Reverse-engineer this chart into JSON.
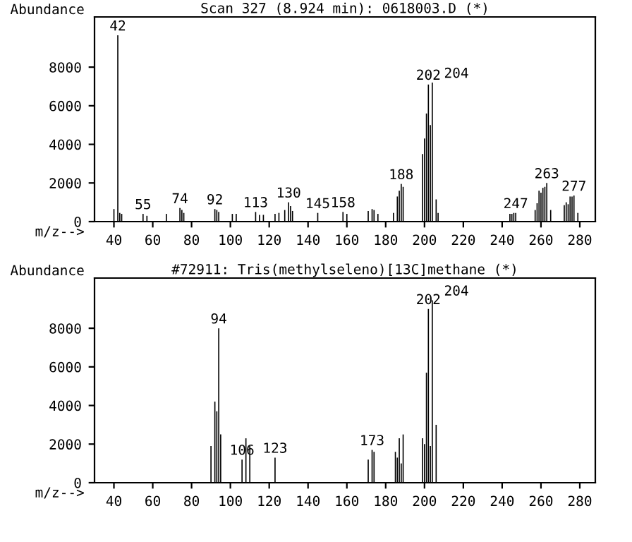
{
  "chart_data": [
    {
      "type": "bar",
      "title": "Scan 327 (8.924 min): 0618003.D (*)",
      "xlabel": "m/z-->",
      "ylabel": "Abundance",
      "x": [
        40,
        42,
        43,
        44,
        55,
        57,
        67,
        74,
        75,
        76,
        92,
        93,
        94,
        101,
        103,
        113,
        115,
        117,
        123,
        125,
        128,
        130,
        131,
        132,
        145,
        158,
        160,
        171,
        173,
        174,
        176,
        184,
        186,
        187,
        188,
        189,
        199,
        200,
        201,
        202,
        203,
        204,
        206,
        207,
        244,
        245,
        246,
        247,
        257,
        258,
        259,
        260,
        261,
        262,
        263,
        265,
        272,
        273,
        274,
        275,
        276,
        277,
        279
      ],
      "values": [
        650,
        9650,
        450,
        400,
        400,
        300,
        400,
        700,
        600,
        450,
        650,
        600,
        500,
        400,
        400,
        500,
        350,
        350,
        400,
        450,
        600,
        1000,
        800,
        550,
        450,
        500,
        400,
        550,
        650,
        600,
        400,
        450,
        1300,
        1600,
        1950,
        1800,
        3500,
        4300,
        5600,
        7100,
        5000,
        7200,
        1150,
        450,
        400,
        400,
        450,
        450,
        600,
        950,
        1600,
        1500,
        1750,
        1800,
        2000,
        600,
        850,
        1000,
        900,
        1300,
        1300,
        1350,
        450
      ],
      "color": "#000000",
      "annotations": [
        {
          "text": "42",
          "x": 42,
          "y": 9650
        },
        {
          "text": "55",
          "x": 55,
          "y": 400
        },
        {
          "text": "74",
          "x": 74,
          "y": 700
        },
        {
          "text": "92",
          "x": 92,
          "y": 650
        },
        {
          "text": "113",
          "x": 113,
          "y": 500
        },
        {
          "text": "130",
          "x": 130,
          "y": 1000
        },
        {
          "text": "145",
          "x": 145,
          "y": 450
        },
        {
          "text": "158",
          "x": 158,
          "y": 500
        },
        {
          "text": "188",
          "x": 188,
          "y": 1950
        },
        {
          "text": "202",
          "x": 202,
          "y": 7100
        },
        {
          "text": "204",
          "x": 204,
          "y": 7200
        },
        {
          "text": "247",
          "x": 247,
          "y": 450
        },
        {
          "text": "263",
          "x": 263,
          "y": 2000
        },
        {
          "text": "277",
          "x": 277,
          "y": 1350
        }
      ],
      "xlim": [
        30,
        288
      ],
      "ylim": [
        0,
        10600
      ],
      "xticks": [
        40,
        60,
        80,
        100,
        120,
        140,
        160,
        180,
        200,
        220,
        240,
        260,
        280
      ],
      "yticks": [
        0,
        2000,
        4000,
        6000,
        8000
      ],
      "grid": false
    },
    {
      "type": "bar",
      "title": "#72911: Tris(methylseleno)[13C]methane (*)",
      "xlabel": "m/z-->",
      "ylabel": "Abundance",
      "x": [
        90,
        92,
        93,
        94,
        95,
        106,
        108,
        110,
        123,
        171,
        173,
        174,
        185,
        186,
        187,
        188,
        189,
        199,
        200,
        201,
        202,
        203,
        204,
        206
      ],
      "values": [
        1900,
        4200,
        3700,
        8000,
        2500,
        1200,
        2300,
        1900,
        1300,
        1200,
        1700,
        1600,
        1600,
        1300,
        2300,
        1000,
        2500,
        2300,
        2000,
        5700,
        9000,
        1900,
        9450,
        3000
      ],
      "color": "#000000",
      "annotations": [
        {
          "text": "94",
          "x": 94,
          "y": 8000
        },
        {
          "text": "106",
          "x": 106,
          "y": 1200
        },
        {
          "text": "123",
          "x": 123,
          "y": 1300
        },
        {
          "text": "173",
          "x": 173,
          "y": 1700
        },
        {
          "text": "202",
          "x": 202,
          "y": 9000
        },
        {
          "text": "204",
          "x": 204,
          "y": 9450
        }
      ],
      "xlim": [
        30,
        288
      ],
      "ylim": [
        0,
        10600
      ],
      "xticks": [
        40,
        60,
        80,
        100,
        120,
        140,
        160,
        180,
        200,
        220,
        240,
        260,
        280
      ],
      "yticks": [
        0,
        2000,
        4000,
        6000,
        8000
      ],
      "grid": false
    }
  ]
}
